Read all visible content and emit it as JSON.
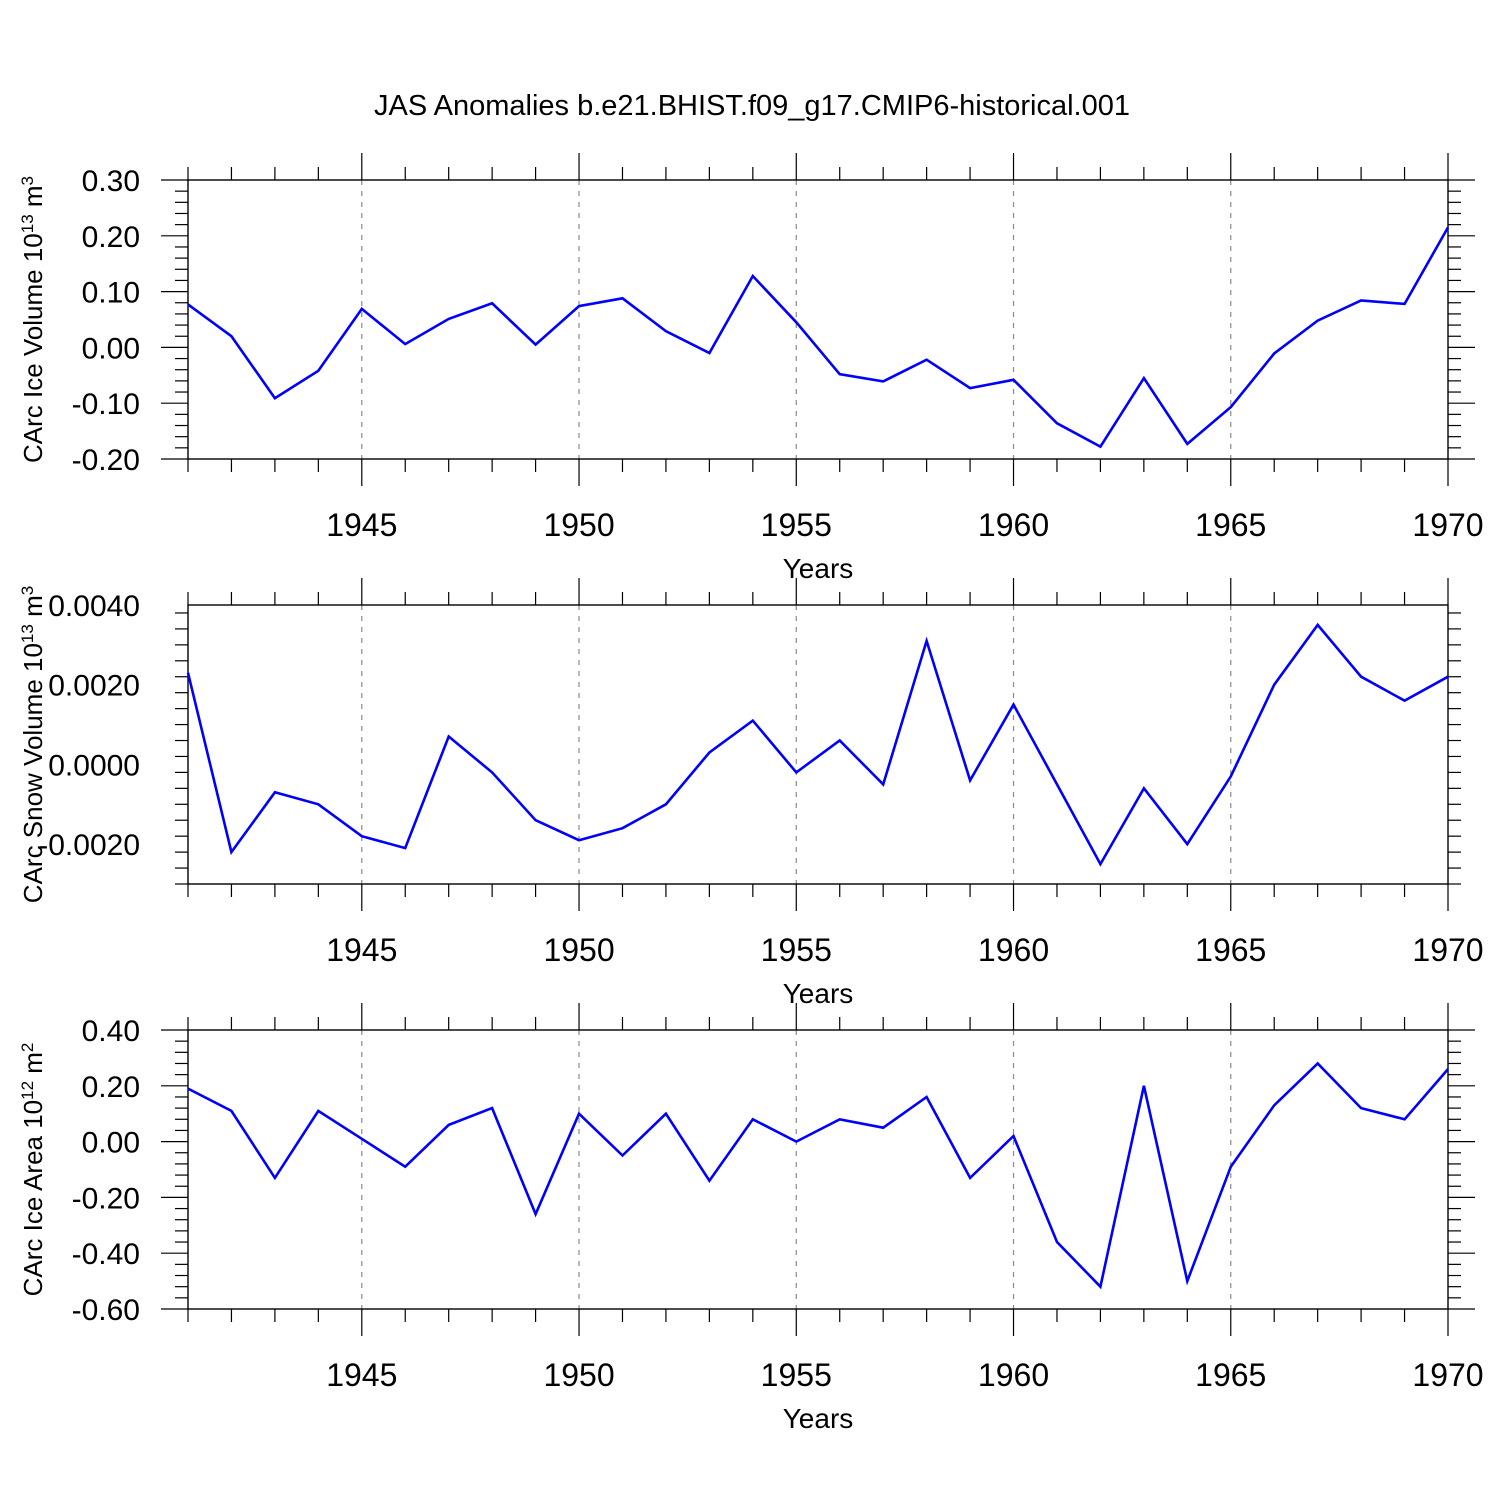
{
  "title": "JAS Anomalies b.e21.BHIST.f09_g17.CMIP6-historical.001",
  "chart_data": [
    {
      "type": "line",
      "ylabel_parts": [
        "CArc Ice Volume 10",
        "13",
        " m",
        "3"
      ],
      "xlabel": "Years",
      "xlim": [
        1941,
        1970
      ],
      "ylim": [
        -0.2,
        0.3
      ],
      "yticks": [
        -0.2,
        -0.1,
        0.0,
        0.1,
        0.2,
        0.3
      ],
      "ytick_labels": [
        "-0.20",
        "-0.10",
        "0.00",
        "0.10",
        "0.20",
        "0.30"
      ],
      "xticks": [
        1945,
        1950,
        1955,
        1960,
        1965,
        1970
      ],
      "xtick_labels": [
        "1945",
        "1950",
        "1955",
        "1960",
        "1965",
        "1970"
      ],
      "grid": "dashed vertical at major x ticks",
      "line_color": "#0000ff",
      "x": [
        1941,
        1942,
        1943,
        1944,
        1945,
        1946,
        1947,
        1948,
        1949,
        1950,
        1951,
        1952,
        1953,
        1954,
        1955,
        1956,
        1957,
        1958,
        1959,
        1960,
        1961,
        1962,
        1963,
        1964,
        1965,
        1966,
        1967,
        1968,
        1969,
        1970
      ],
      "values": [
        0.077,
        0.02,
        -0.091,
        -0.042,
        0.069,
        0.006,
        0.051,
        0.079,
        0.005,
        0.074,
        0.088,
        0.029,
        -0.01,
        0.128,
        0.045,
        -0.048,
        -0.061,
        -0.022,
        -0.073,
        -0.058,
        -0.136,
        -0.178,
        -0.055,
        -0.173,
        -0.107,
        -0.011,
        0.048,
        0.084,
        0.078,
        0.215
      ]
    },
    {
      "type": "line",
      "ylabel_parts": [
        "CArc Snow Volume 10",
        "13",
        " m",
        "3"
      ],
      "xlabel": "Years",
      "xlim": [
        1941,
        1970
      ],
      "ylim": [
        -0.003,
        0.004
      ],
      "yticks": [
        -0.002,
        0.0,
        0.002,
        0.004
      ],
      "ytick_labels": [
        "-0.0020",
        "0.0000",
        "0.0020",
        "0.0040"
      ],
      "xticks": [
        1945,
        1950,
        1955,
        1960,
        1965,
        1970
      ],
      "xtick_labels": [
        "1945",
        "1950",
        "1955",
        "1960",
        "1965",
        "1970"
      ],
      "grid": "dashed vertical at major x ticks",
      "line_color": "#0000ff",
      "x": [
        1941,
        1942,
        1943,
        1944,
        1945,
        1946,
        1947,
        1948,
        1949,
        1950,
        1951,
        1952,
        1953,
        1954,
        1955,
        1956,
        1957,
        1958,
        1959,
        1960,
        1961,
        1962,
        1963,
        1964,
        1965,
        1966,
        1967,
        1968,
        1969,
        1970
      ],
      "values": [
        0.0023,
        -0.0022,
        -0.0007,
        -0.001,
        -0.0018,
        -0.0021,
        0.0007,
        -0.0002,
        -0.0014,
        -0.0019,
        -0.0016,
        -0.001,
        0.0003,
        0.0011,
        -0.0002,
        0.0006,
        -0.0005,
        0.0031,
        -0.0004,
        0.0015,
        -0.0005,
        -0.0025,
        -0.0006,
        -0.002,
        -0.0003,
        0.002,
        0.0035,
        0.0022,
        0.0016,
        0.0022
      ]
    },
    {
      "type": "line",
      "ylabel_parts": [
        "CArc Ice Area 10",
        "12",
        " m",
        "2"
      ],
      "xlabel": "Years",
      "xlim": [
        1941,
        1970
      ],
      "ylim": [
        -0.6,
        0.4
      ],
      "yticks": [
        -0.6,
        -0.4,
        -0.2,
        0.0,
        0.2,
        0.4
      ],
      "ytick_labels": [
        "-0.60",
        "-0.40",
        "-0.20",
        "0.00",
        "0.20",
        "0.40"
      ],
      "xticks": [
        1945,
        1950,
        1955,
        1960,
        1965,
        1970
      ],
      "xtick_labels": [
        "1945",
        "1950",
        "1955",
        "1960",
        "1965",
        "1970"
      ],
      "grid": "dashed vertical at major x ticks",
      "line_color": "#0000ff",
      "x": [
        1941,
        1942,
        1943,
        1944,
        1945,
        1946,
        1947,
        1948,
        1949,
        1950,
        1951,
        1952,
        1953,
        1954,
        1955,
        1956,
        1957,
        1958,
        1959,
        1960,
        1961,
        1962,
        1963,
        1964,
        1965,
        1966,
        1967,
        1968,
        1969,
        1970
      ],
      "values": [
        0.19,
        0.11,
        -0.13,
        0.11,
        0.01,
        -0.09,
        0.06,
        0.12,
        -0.26,
        0.1,
        -0.05,
        0.1,
        -0.14,
        0.08,
        0.0,
        0.08,
        0.05,
        0.16,
        -0.13,
        0.02,
        -0.36,
        -0.52,
        0.2,
        -0.5,
        -0.09,
        0.13,
        0.28,
        0.12,
        0.08,
        0.26
      ]
    }
  ]
}
